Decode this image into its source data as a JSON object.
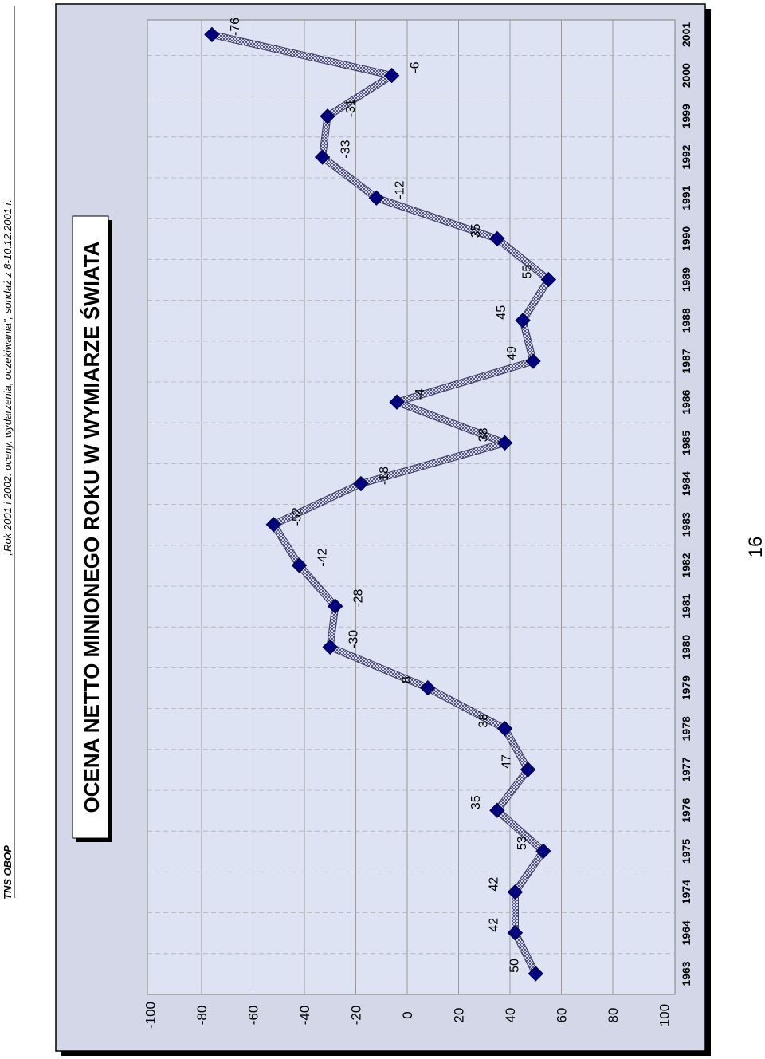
{
  "header": {
    "org": "TNS OBOP",
    "report": "„Rok 2001 i 2002: oceny, wydarzenia, oczekiwania\", sondaż z 8-10.12.2001 r."
  },
  "page_number": "16",
  "colors": {
    "plot_background": "#dde3f3",
    "line": "#8a8ab0",
    "marker": "#000080",
    "grid": "#999999"
  },
  "chart_data": {
    "type": "line",
    "title": "OCENA NETTO MINIONEGO ROKU W WYMIARZE ŚWIATA",
    "xlabel": "",
    "ylabel": "",
    "ylim": [
      -100,
      100
    ],
    "yticks": [
      "100",
      "80",
      "60",
      "40",
      "20",
      "0",
      "-20",
      "-40",
      "-60",
      "-80",
      "-100"
    ],
    "grid": "horizontal",
    "categories": [
      "1963",
      "1964",
      "1974",
      "1975",
      "1976",
      "1977",
      "1978",
      "1979",
      "1980",
      "1981",
      "1982",
      "1983",
      "1984",
      "1985",
      "1986",
      "1987",
      "1988",
      "1989",
      "1990",
      "1991",
      "1992",
      "1999",
      "2000",
      "2001"
    ],
    "series": [
      {
        "values": [
          50,
          42,
          42,
          53,
          35,
          47,
          38,
          8,
          -30,
          -28,
          -42,
          -52,
          -18,
          38,
          -4,
          49,
          45,
          55,
          35,
          -12,
          -33,
          -31,
          -6,
          -76
        ],
        "labels": [
          "50",
          "42",
          "42",
          "53",
          "35",
          "47",
          "38",
          "8",
          "-30",
          "-28",
          "-42",
          "-52",
          "-18",
          "38",
          "-4",
          "49",
          "45",
          "55",
          "35",
          "-12",
          "-33",
          "-31",
          "-6",
          "-76"
        ]
      }
    ]
  }
}
